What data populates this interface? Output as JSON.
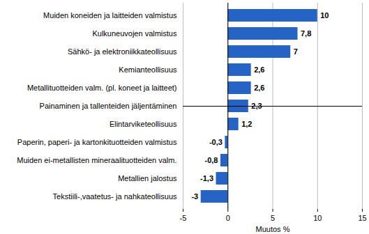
{
  "chart_data": {
    "type": "bar",
    "orientation": "horizontal",
    "categories": [
      "Muiden koneiden ja laitteiden valmistus",
      "Kulkuneuvojen valmistus",
      "Sähkö- ja elektroniikkateollisuus",
      "Kemianteollisuus",
      "Metallituotteiden valm. (pl. koneet ja laitteet)",
      "Painaminen ja tallenteiden jäljentäminen",
      "Elintarviketeollisuus",
      "Paperin, paperi- ja kartonkituotteiden valmistus",
      "Muiden ei-metallisten mineraalituotteiden valm.",
      "Metallien jalostus",
      "Tekstiili-,vaatetus- ja nahkateollisuus"
    ],
    "values": [
      10,
      7.8,
      7,
      2.6,
      2.6,
      2.3,
      1.2,
      -0.3,
      -0.8,
      -1.3,
      -3
    ],
    "value_labels": [
      "10",
      "7,8",
      "7",
      "2,6",
      "2,6",
      "2,3",
      "1,2",
      "-0,3",
      "-0,8",
      "-1,3",
      "-3"
    ],
    "color": "#2563c4",
    "x_label": "Muutos %",
    "xlim": [
      -5,
      15
    ],
    "xticks": [
      -5,
      0,
      5,
      10,
      15
    ],
    "grid": true,
    "data_labels": true
  }
}
